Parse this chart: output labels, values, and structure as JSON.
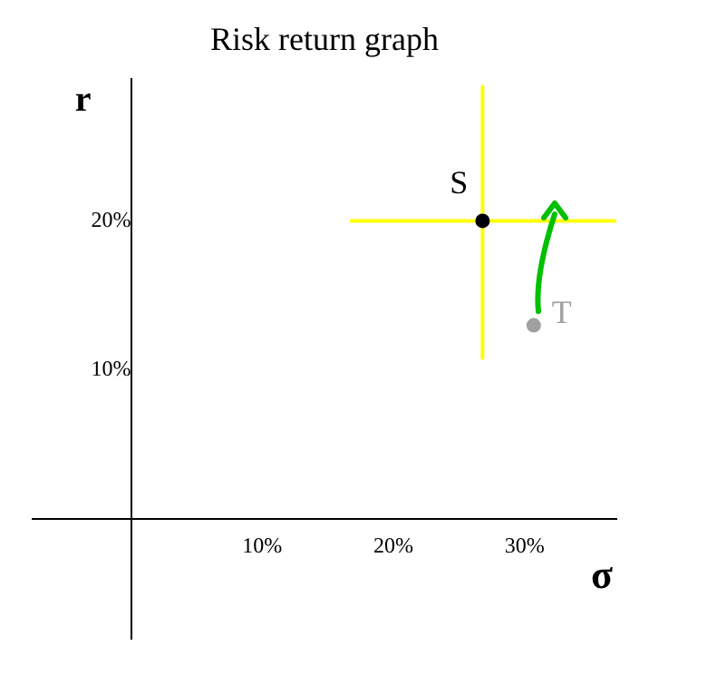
{
  "chart_data": {
    "type": "scatter",
    "title": "Risk return graph",
    "xlabel": "σ",
    "ylabel": "r",
    "series": [
      {
        "type": "line",
        "color": "#ffff00",
        "x": [
          16.7,
          37
        ],
        "values": [
          20,
          20
        ]
      },
      {
        "type": "line",
        "color": "#ffff00",
        "x": [
          26.8,
          26.8
        ],
        "values": [
          29,
          10.8
        ]
      },
      {
        "type": "scatter",
        "x": [
          26.8,
          30.7
        ],
        "values": [
          20,
          13
        ],
        "colors": [
          "#000000",
          "#a0a0a0"
        ],
        "marker": "circle"
      }
    ],
    "xlim": [
      -7.5,
      37
    ],
    "ylim": [
      -8,
      29.5
    ],
    "xticks": [
      {
        "value": 10,
        "label": "10%"
      },
      {
        "value": 20,
        "label": "20%"
      },
      {
        "value": 30,
        "label": "30%"
      }
    ],
    "yticks": [
      {
        "value": 10,
        "label": "10%"
      },
      {
        "value": 20,
        "label": "20%"
      }
    ],
    "annotations": [
      {
        "text": "S",
        "x": 26.8,
        "y": 20
      },
      {
        "text": "T",
        "x": 30.7,
        "y": 13
      }
    ],
    "grid": false,
    "legend": false
  }
}
